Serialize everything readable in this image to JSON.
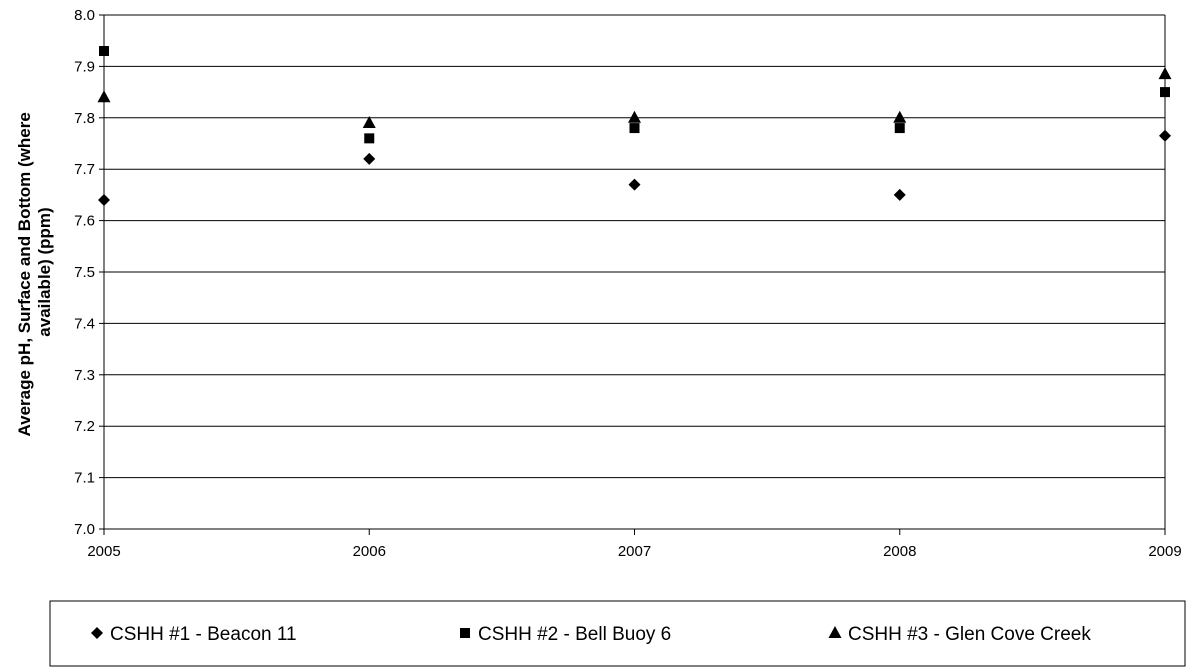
{
  "chart_data": {
    "type": "scatter",
    "title": "",
    "xlabel": "",
    "ylabel": "Average pH, Surface and Bottom (where available) (ppm)",
    "ylabel_lines": [
      "Average pH, Surface and Bottom (where",
      "available) (ppm)"
    ],
    "x_ticks": [
      "2005",
      "2006",
      "2007",
      "2008",
      "2009"
    ],
    "y_ticks": [
      "7.0",
      "7.1",
      "7.2",
      "7.3",
      "7.4",
      "7.5",
      "7.6",
      "7.7",
      "7.8",
      "7.9",
      "8.0"
    ],
    "xlim": [
      2005,
      2009
    ],
    "ylim": [
      7.0,
      8.0
    ],
    "grid": "horizontal",
    "legend_position": "bottom",
    "series": [
      {
        "name": "CSHH #1 - Beacon 11",
        "marker": "diamond",
        "x": [
          2005,
          2006,
          2007,
          2008,
          2009
        ],
        "y": [
          7.64,
          7.72,
          7.67,
          7.65,
          7.765
        ]
      },
      {
        "name": "CSHH #2 - Bell Buoy 6",
        "marker": "square",
        "x": [
          2005,
          2006,
          2007,
          2008,
          2009
        ],
        "y": [
          7.93,
          7.76,
          7.78,
          7.78,
          7.85
        ]
      },
      {
        "name": "CSHH #3 - Glen Cove Creek",
        "marker": "triangle",
        "x": [
          2005,
          2006,
          2007,
          2008,
          2009
        ],
        "y": [
          7.84,
          7.79,
          7.8,
          7.8,
          7.885
        ]
      }
    ],
    "colors": {
      "marker": "#000000",
      "grid": "#000000",
      "axis": "#000000"
    }
  }
}
